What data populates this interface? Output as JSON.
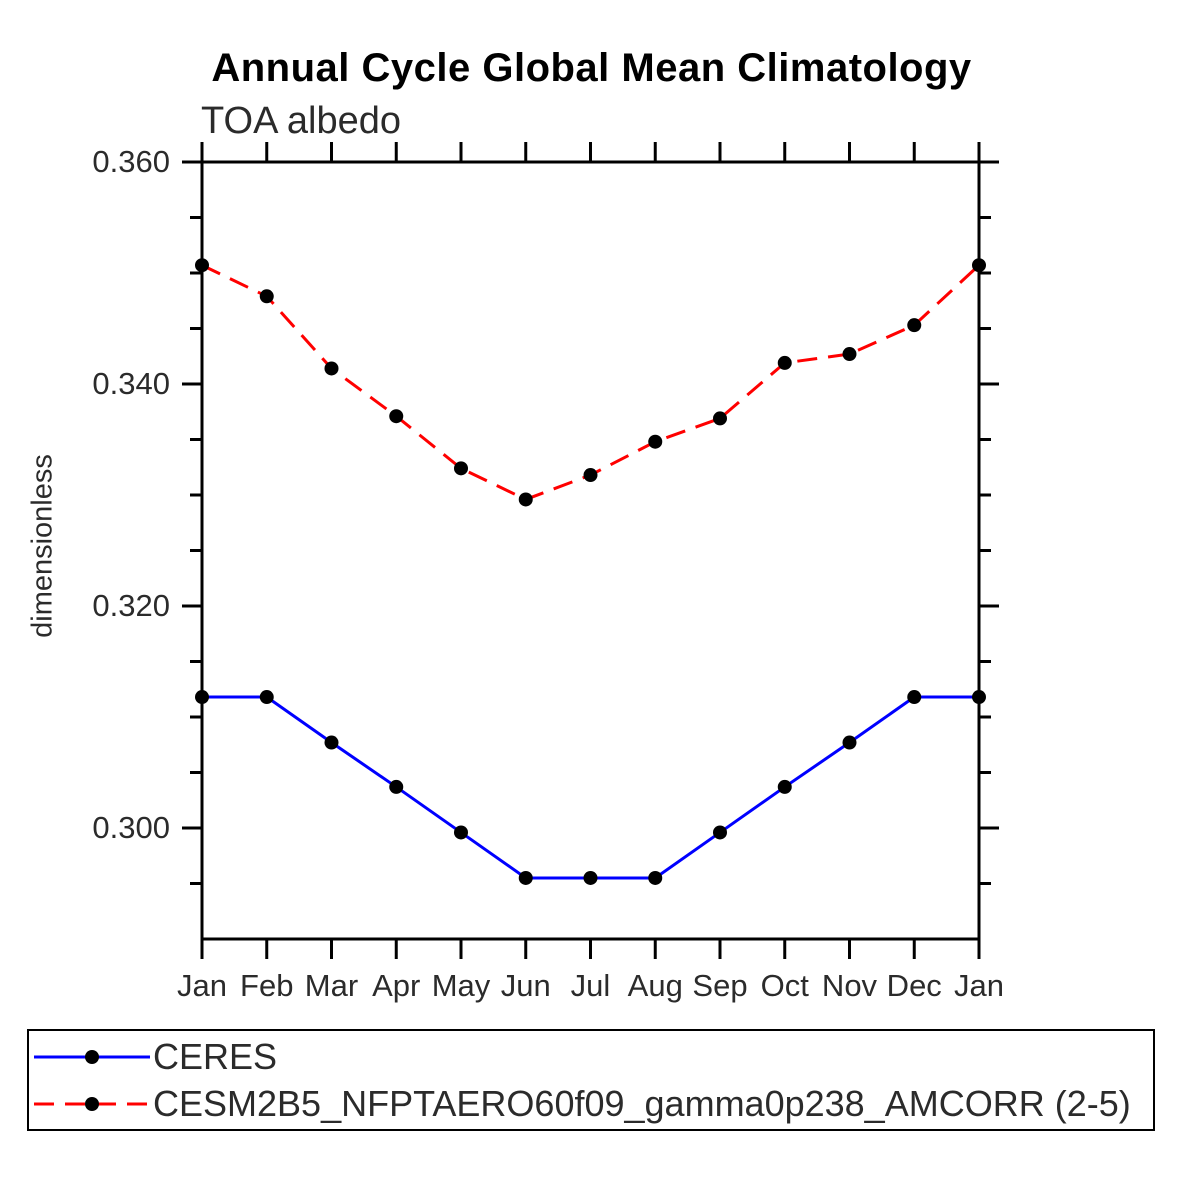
{
  "chart_data": {
    "type": "line",
    "title": "Annual Cycle Global Mean Climatology",
    "subtitle": "TOA albedo",
    "ylabel": "dimensionless",
    "xlabel": "",
    "categories": [
      "Jan",
      "Feb",
      "Mar",
      "Apr",
      "May",
      "Jun",
      "Jul",
      "Aug",
      "Sep",
      "Oct",
      "Nov",
      "Dec",
      "Jan"
    ],
    "series": [
      {
        "name": "CERES",
        "color": "#0000ff",
        "line": "solid",
        "values": [
          0.3118,
          0.3118,
          0.3077,
          0.3037,
          0.2996,
          0.2955,
          0.2955,
          0.2955,
          0.2996,
          0.3037,
          0.3077,
          0.3118,
          0.3118
        ]
      },
      {
        "name": "CESM2B5_NFPTAERO60f09_gamma0p238_AMCORR (2-5)",
        "color": "#ff0000",
        "line": "dashed",
        "values": [
          0.3507,
          0.3479,
          0.3414,
          0.3371,
          0.3324,
          0.3296,
          0.3318,
          0.3348,
          0.3369,
          0.3419,
          0.3427,
          0.3453,
          0.3507
        ]
      }
    ],
    "marker": "filled-circle",
    "marker_color": "#000000",
    "axis_color": "#000000",
    "ylim": [
      0.29,
      0.36
    ],
    "yticks_major": [
      0.3,
      0.32,
      0.34,
      0.36
    ],
    "ytick_labels": [
      "0.300",
      "0.320",
      "0.340",
      "0.360"
    ],
    "yticks_minor_step": 0.005,
    "grid": false,
    "legend_position": "bottom-left-box"
  }
}
